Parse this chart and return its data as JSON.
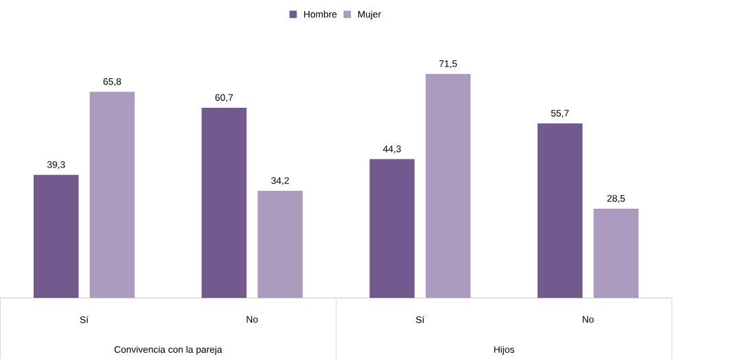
{
  "chart_data": {
    "type": "bar",
    "categories": [
      "Sí",
      "No",
      "Sí",
      "No"
    ],
    "series": [
      {
        "name": "Hombre",
        "color": "#725a8e",
        "values": [
          39.3,
          60.7,
          44.3,
          55.7
        ],
        "value_labels": [
          "39,3",
          "60,7",
          "44,3",
          "55,7"
        ]
      },
      {
        "name": "Mujer",
        "color": "#aa9bbf",
        "values": [
          65.8,
          34.2,
          71.5,
          28.5
        ],
        "value_labels": [
          "65,8",
          "34,2",
          "71,5",
          "28,5"
        ]
      }
    ],
    "annotations": [
      "Convivencia con la pareja",
      "Hijos"
    ],
    "legend": "top"
  }
}
